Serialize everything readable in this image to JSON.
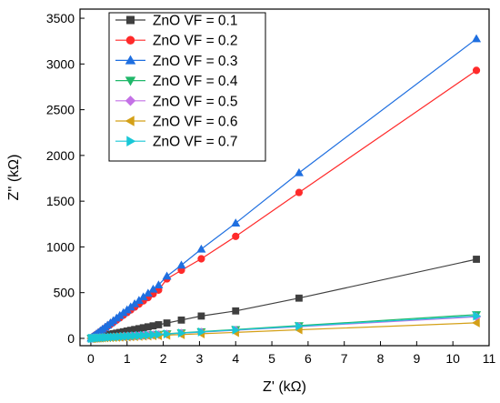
{
  "chart_data": {
    "type": "scatter",
    "xlabel": "Z' (kΩ)",
    "ylabel": "Z'' (kΩ)",
    "xlim": [
      -0.3,
      11
    ],
    "ylim": [
      -80,
      3600
    ],
    "xticks": [
      "0",
      "1",
      "2",
      "3",
      "4",
      "5",
      "6",
      "7",
      "8",
      "9",
      "10",
      "11"
    ],
    "yticks": [
      "0",
      "500",
      "1000",
      "1500",
      "2000",
      "2500",
      "3000",
      "3500"
    ],
    "grid": false,
    "legend_position": "top-left",
    "x": [
      0.01,
      0.03,
      0.06,
      0.1,
      0.15,
      0.2,
      0.26,
      0.32,
      0.39,
      0.46,
      0.54,
      0.62,
      0.71,
      0.8,
      0.9,
      1.0,
      1.1,
      1.21,
      1.33,
      1.45,
      1.58,
      1.72,
      1.87,
      2.1,
      2.5,
      3.05,
      4.0,
      5.75,
      10.65
    ],
    "series": [
      {
        "name": "ZnO VF = 0.1",
        "color": "#3f3f3f",
        "marker": "square",
        "values": [
          1,
          2,
          5,
          8,
          12,
          16,
          21,
          26,
          31,
          37,
          43,
          50,
          57,
          64,
          72,
          80,
          88,
          97,
          106,
          116,
          126,
          137,
          149,
          168,
          200,
          244,
          300,
          440,
          865
        ]
      },
      {
        "name": "ZnO VF = 0.2",
        "color": "#ff2a2a",
        "marker": "circle",
        "values": [
          2,
          8,
          17,
          28,
          42,
          56,
          73,
          90,
          110,
          130,
          152,
          175,
          200,
          225,
          254,
          282,
          310,
          342,
          375,
          410,
          446,
          486,
          528,
          650,
          745,
          870,
          1115,
          1595,
          2930
        ]
      },
      {
        "name": "ZnO VF = 0.3",
        "color": "#1f6fe0",
        "marker": "triangle-up",
        "values": [
          3,
          10,
          19,
          31,
          47,
          62,
          81,
          100,
          121,
          143,
          168,
          193,
          221,
          249,
          280,
          311,
          342,
          377,
          414,
          452,
          492,
          537,
          583,
          680,
          800,
          975,
          1260,
          1810,
          3275
        ]
      },
      {
        "name": "ZnO VF = 0.4",
        "color": "#20b86a",
        "marker": "triangle-down",
        "values": [
          0,
          1,
          1,
          2,
          4,
          5,
          6,
          8,
          9,
          11,
          13,
          15,
          17,
          19,
          21,
          24,
          26,
          29,
          32,
          35,
          38,
          41,
          45,
          51,
          61,
          74,
          97,
          140,
          260
        ]
      },
      {
        "name": "ZnO VF = 0.5",
        "color": "#c471e6",
        "marker": "diamond",
        "values": [
          0,
          1,
          1,
          2,
          3,
          4,
          6,
          7,
          9,
          10,
          12,
          14,
          16,
          18,
          20,
          22,
          24,
          27,
          29,
          32,
          35,
          38,
          41,
          47,
          56,
          68,
          89,
          128,
          235
        ]
      },
      {
        "name": "ZnO VF = 0.6",
        "color": "#d4a017",
        "marker": "triangle-left",
        "values": [
          0,
          0,
          1,
          2,
          2,
          3,
          4,
          5,
          6,
          8,
          9,
          10,
          12,
          13,
          15,
          16,
          18,
          20,
          22,
          24,
          26,
          28,
          30,
          35,
          41,
          50,
          65,
          94,
          170
        ]
      },
      {
        "name": "ZnO VF = 0.7",
        "color": "#18c7d6",
        "marker": "triangle-right",
        "values": [
          0,
          1,
          1,
          2,
          4,
          5,
          6,
          8,
          9,
          11,
          13,
          14,
          16,
          18,
          21,
          23,
          25,
          28,
          30,
          33,
          36,
          39,
          43,
          48,
          58,
          70,
          92,
          133,
          245
        ]
      }
    ]
  }
}
